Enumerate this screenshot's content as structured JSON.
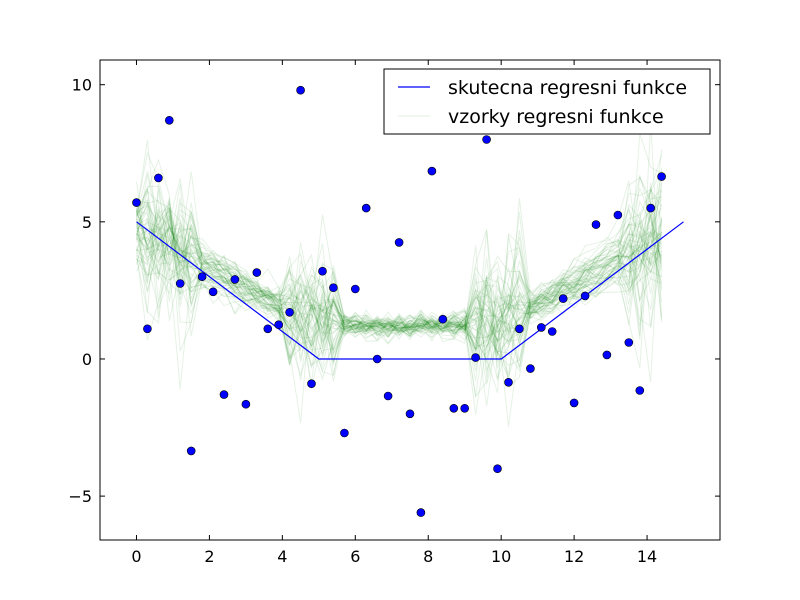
{
  "chart_data": {
    "type": "scatter",
    "title": "",
    "xlabel": "",
    "ylabel": "",
    "xlim": [
      -1,
      16
    ],
    "ylim": [
      -6.6,
      10.9
    ],
    "x_ticks": [
      0,
      2,
      4,
      6,
      8,
      10,
      12,
      14
    ],
    "y_ticks": [
      -5,
      0,
      5,
      10
    ],
    "x_tick_labels": [
      "0",
      "2",
      "4",
      "6",
      "8",
      "10",
      "12",
      "14"
    ],
    "y_tick_labels": [
      "−5",
      "0",
      "5",
      "10"
    ],
    "grid": false,
    "legend": {
      "placement": "upper-right",
      "entries": [
        {
          "label": "skutecna regresni funkce",
          "color": "#0000ff",
          "style": "solid"
        },
        {
          "label": "vzorky regresni funkce",
          "color": "#008000",
          "style": "translucent"
        }
      ]
    },
    "true_function": {
      "name": "skutecna regresni funkce",
      "color": "#0000ff",
      "x": [
        0,
        5,
        10,
        15
      ],
      "y": [
        5,
        0,
        0,
        5
      ]
    },
    "points": {
      "color": "#0000ff",
      "x": [
        0.0,
        0.3,
        0.6,
        0.9,
        1.2,
        1.5,
        1.8,
        2.1,
        2.4,
        2.7,
        3.0,
        3.3,
        3.6,
        3.9,
        4.2,
        4.5,
        4.8,
        5.1,
        5.4,
        5.7,
        6.0,
        6.3,
        6.6,
        6.9,
        7.2,
        7.5,
        7.8,
        8.1,
        8.4,
        8.7,
        9.0,
        9.3,
        9.6,
        9.9,
        10.2,
        10.5,
        10.8,
        11.1,
        11.4,
        11.7,
        12.0,
        12.3,
        12.6,
        12.9,
        13.2,
        13.5,
        13.8,
        14.1,
        14.4
      ],
      "y": [
        5.7,
        1.1,
        6.6,
        8.7,
        2.75,
        -3.35,
        3.0,
        2.45,
        -1.3,
        2.9,
        -1.65,
        3.15,
        1.1,
        1.25,
        1.7,
        9.8,
        -0.9,
        3.2,
        2.6,
        -2.7,
        2.55,
        5.5,
        0.0,
        -1.35,
        4.25,
        -2.0,
        -5.6,
        6.85,
        1.45,
        -1.8,
        -1.8,
        0.05,
        8.0,
        -4.0,
        -0.85,
        1.1,
        -0.35,
        1.15,
        1.0,
        2.2,
        -1.6,
        2.3,
        4.9,
        0.15,
        5.25,
        0.6,
        -1.15,
        5.5,
        6.65
      ]
    },
    "samples": {
      "name": "vzorky regresni funkce",
      "color": "#008000",
      "count": 60
    }
  }
}
